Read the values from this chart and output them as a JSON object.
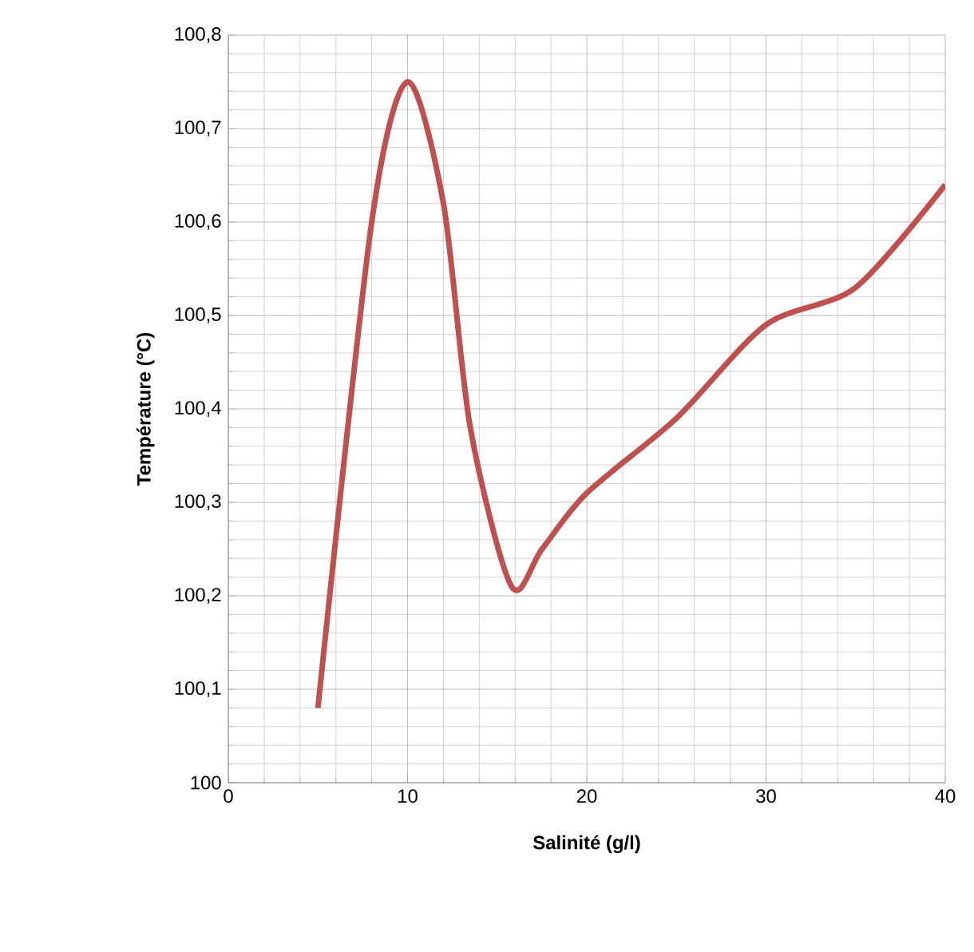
{
  "chart_data": {
    "type": "line",
    "xlabel": "Salinité (g/l)",
    "ylabel": "Température (°C)",
    "x": [
      5,
      8,
      10,
      12,
      13.5,
      15.8,
      17.5,
      20,
      25,
      30,
      35,
      40
    ],
    "series": [
      {
        "color": "#c0504d",
        "values": [
          100.08,
          100.6,
          100.75,
          100.62,
          100.38,
          100.21,
          100.25,
          100.31,
          100.39,
          100.49,
          100.53,
          100.64
        ]
      }
    ],
    "xlim": [
      0,
      40
    ],
    "xticks": [
      0,
      10,
      20,
      30,
      40
    ],
    "ylim": [
      100,
      100.8
    ],
    "yticks": [
      100,
      {
        "value": 100.1,
        "label": "100,1"
      },
      {
        "value": 100.2,
        "label": "100,2"
      },
      {
        "value": 100.3,
        "label": "100,3"
      },
      {
        "value": 100.4,
        "label": "100,4"
      },
      {
        "value": 100.5,
        "label": "100,5"
      },
      {
        "value": 100.6,
        "label": "100,6"
      },
      {
        "value": 100.7,
        "label": "100,7"
      },
      {
        "value": 100.8,
        "label": "100,8"
      }
    ],
    "grid": true,
    "marker": "none",
    "line_style": "solid"
  }
}
